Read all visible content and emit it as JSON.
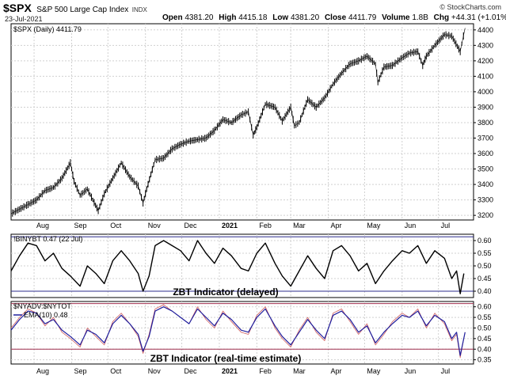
{
  "header": {
    "symbol": "$SPX",
    "name": "S&P 500 Large Cap Index",
    "exchange": "INDX",
    "date": "23-Jul-2021",
    "quote_open_label": "Open",
    "open": "4381.20",
    "quote_high_label": "High",
    "high": "4415.18",
    "quote_low_label": "Low",
    "low": "4381.20",
    "quote_close_label": "Close",
    "close": "4411.79",
    "quote_volume_label": "Volume",
    "volume": "1.8B",
    "quote_chg_label": "Chg",
    "chg": "+44.31 (+1.01%)",
    "watermark": "© StockCharts.com"
  },
  "colors": {
    "price_bars": "#000000",
    "panel2_line": "#000000",
    "panel3_raw": "#d06060",
    "panel3_ema": "#1f1f9e",
    "threshold_line": "#2c2c8c",
    "threshold_upper_panel3": "#a03050",
    "grid": "#d0d0d0"
  },
  "chart_data": [
    {
      "type": "line",
      "title": "",
      "legend": "$SPX (Daily) 4411.79",
      "x_tick_labels": [
        "Aug",
        "Sep",
        "Oct",
        "Nov",
        "Dec",
        "2021",
        "Feb",
        "Mar",
        "Apr",
        "May",
        "Jun",
        "Jul"
      ],
      "x_tick_dates": [
        "2020-08-01",
        "2020-09-01",
        "2020-10-01",
        "2020-11-01",
        "2020-12-01",
        "2021-01-01",
        "2021-02-01",
        "2021-03-01",
        "2021-04-01",
        "2021-05-01",
        "2021-06-01",
        "2021-07-01"
      ],
      "xlim": [
        "2020-07-13",
        "2021-07-30"
      ],
      "ylim": [
        3170,
        4440
      ],
      "y_ticks": [
        3200,
        3300,
        3400,
        3500,
        3600,
        3700,
        3800,
        3900,
        4000,
        4100,
        4200,
        4300,
        4400
      ],
      "x": [
        "2020-07-13",
        "2020-07-20",
        "2020-07-27",
        "2020-08-03",
        "2020-08-10",
        "2020-08-17",
        "2020-08-24",
        "2020-08-31",
        "2020-09-03",
        "2020-09-08",
        "2020-09-14",
        "2020-09-23",
        "2020-09-28",
        "2020-10-05",
        "2020-10-12",
        "2020-10-19",
        "2020-10-26",
        "2020-10-30",
        "2020-11-02",
        "2020-11-09",
        "2020-11-16",
        "2020-11-23",
        "2020-11-30",
        "2020-12-07",
        "2020-12-14",
        "2020-12-21",
        "2020-12-28",
        "2021-01-04",
        "2021-01-11",
        "2021-01-19",
        "2021-01-25",
        "2021-01-29",
        "2021-02-01",
        "2021-02-08",
        "2021-02-16",
        "2021-02-22",
        "2021-03-01",
        "2021-03-04",
        "2021-03-08",
        "2021-03-15",
        "2021-03-22",
        "2021-03-29",
        "2021-04-05",
        "2021-04-12",
        "2021-04-19",
        "2021-04-26",
        "2021-05-03",
        "2021-05-10",
        "2021-05-12",
        "2021-05-17",
        "2021-05-24",
        "2021-06-01",
        "2021-06-07",
        "2021-06-14",
        "2021-06-18",
        "2021-06-21",
        "2021-06-28",
        "2021-07-06",
        "2021-07-12",
        "2021-07-19",
        "2021-07-23"
      ],
      "series": [
        {
          "values": [
            3210,
            3240,
            3270,
            3300,
            3360,
            3380,
            3440,
            3540,
            3420,
            3330,
            3370,
            3230,
            3340,
            3440,
            3540,
            3450,
            3390,
            3280,
            3370,
            3560,
            3570,
            3630,
            3660,
            3680,
            3690,
            3700,
            3750,
            3820,
            3800,
            3850,
            3870,
            3720,
            3770,
            3920,
            3900,
            3810,
            3900,
            3780,
            3800,
            3950,
            3900,
            3960,
            4050,
            4120,
            4180,
            4200,
            4230,
            4180,
            4060,
            4160,
            4170,
            4220,
            4250,
            4260,
            4170,
            4230,
            4300,
            4370,
            4360,
            4260,
            4412
          ]
        }
      ]
    },
    {
      "type": "line",
      "title": "",
      "legend": "!BINYBT 0.47 (22 Jul)",
      "annotation": "ZBT Indicator (delayed)",
      "ylim": [
        0.375,
        0.625
      ],
      "y_ticks": [
        0.4,
        0.45,
        0.5,
        0.55,
        0.6
      ],
      "y_tick_labels": [
        "0.40",
        "0.45",
        "0.50",
        "0.55",
        "0.60"
      ],
      "threshold_lines": [
        0.615,
        0.4
      ],
      "x": [
        "2020-07-13",
        "2020-07-20",
        "2020-07-27",
        "2020-08-03",
        "2020-08-10",
        "2020-08-17",
        "2020-08-24",
        "2020-08-31",
        "2020-09-08",
        "2020-09-14",
        "2020-09-21",
        "2020-09-28",
        "2020-10-05",
        "2020-10-12",
        "2020-10-19",
        "2020-10-26",
        "2020-10-30",
        "2020-11-04",
        "2020-11-09",
        "2020-11-16",
        "2020-11-23",
        "2020-11-30",
        "2020-12-07",
        "2020-12-14",
        "2020-12-21",
        "2020-12-28",
        "2021-01-04",
        "2021-01-11",
        "2021-01-19",
        "2021-01-25",
        "2021-02-01",
        "2021-02-08",
        "2021-02-16",
        "2021-02-22",
        "2021-03-01",
        "2021-03-08",
        "2021-03-15",
        "2021-03-22",
        "2021-03-29",
        "2021-04-05",
        "2021-04-12",
        "2021-04-19",
        "2021-04-26",
        "2021-05-03",
        "2021-05-10",
        "2021-05-17",
        "2021-05-24",
        "2021-06-01",
        "2021-06-07",
        "2021-06-14",
        "2021-06-21",
        "2021-06-28",
        "2021-07-06",
        "2021-07-12",
        "2021-07-16",
        "2021-07-19",
        "2021-07-22"
      ],
      "series": [
        {
          "name": "!BINYBT",
          "values": [
            0.48,
            0.54,
            0.59,
            0.58,
            0.52,
            0.55,
            0.49,
            0.46,
            0.42,
            0.5,
            0.47,
            0.43,
            0.52,
            0.56,
            0.52,
            0.47,
            0.4,
            0.46,
            0.58,
            0.6,
            0.58,
            0.56,
            0.52,
            0.6,
            0.55,
            0.51,
            0.57,
            0.54,
            0.49,
            0.48,
            0.55,
            0.59,
            0.51,
            0.46,
            0.42,
            0.48,
            0.54,
            0.49,
            0.45,
            0.56,
            0.58,
            0.54,
            0.48,
            0.51,
            0.43,
            0.48,
            0.52,
            0.56,
            0.55,
            0.58,
            0.51,
            0.56,
            0.53,
            0.45,
            0.48,
            0.39,
            0.47
          ]
        }
      ]
    },
    {
      "type": "line",
      "title": "",
      "legend": [
        "$NYADV:$NYTOT",
        "EMA(10) 0.48"
      ],
      "annotation": "ZBT Indicator (real-time estimate)",
      "ylim": [
        0.33,
        0.625
      ],
      "y_ticks": [
        0.35,
        0.4,
        0.45,
        0.5,
        0.55,
        0.6
      ],
      "y_tick_labels": [
        "0.35",
        "0.40",
        "0.45",
        "0.50",
        "0.55",
        "0.60"
      ],
      "threshold_lines": [
        0.615,
        0.4
      ],
      "x": [
        "2020-07-13",
        "2020-07-20",
        "2020-07-27",
        "2020-08-03",
        "2020-08-10",
        "2020-08-17",
        "2020-08-24",
        "2020-08-31",
        "2020-09-08",
        "2020-09-14",
        "2020-09-21",
        "2020-09-28",
        "2020-10-05",
        "2020-10-12",
        "2020-10-19",
        "2020-10-26",
        "2020-10-30",
        "2020-11-04",
        "2020-11-09",
        "2020-11-16",
        "2020-11-23",
        "2020-11-30",
        "2020-12-07",
        "2020-12-14",
        "2020-12-21",
        "2020-12-28",
        "2021-01-04",
        "2021-01-11",
        "2021-01-19",
        "2021-01-25",
        "2021-02-01",
        "2021-02-08",
        "2021-02-16",
        "2021-02-22",
        "2021-03-01",
        "2021-03-08",
        "2021-03-15",
        "2021-03-22",
        "2021-03-29",
        "2021-04-05",
        "2021-04-12",
        "2021-04-19",
        "2021-04-26",
        "2021-05-03",
        "2021-05-10",
        "2021-05-17",
        "2021-05-24",
        "2021-06-01",
        "2021-06-07",
        "2021-06-14",
        "2021-06-21",
        "2021-06-28",
        "2021-07-06",
        "2021-07-12",
        "2021-07-16",
        "2021-07-19",
        "2021-07-23"
      ],
      "series": [
        {
          "name": "$NYADV:$NYTOT",
          "values": [
            0.5,
            0.55,
            0.59,
            0.57,
            0.51,
            0.55,
            0.48,
            0.45,
            0.41,
            0.5,
            0.46,
            0.42,
            0.53,
            0.57,
            0.52,
            0.46,
            0.38,
            0.47,
            0.59,
            0.61,
            0.58,
            0.55,
            0.52,
            0.6,
            0.54,
            0.5,
            0.58,
            0.53,
            0.48,
            0.47,
            0.56,
            0.6,
            0.5,
            0.45,
            0.41,
            0.49,
            0.55,
            0.48,
            0.44,
            0.57,
            0.59,
            0.53,
            0.47,
            0.52,
            0.42,
            0.47,
            0.53,
            0.57,
            0.55,
            0.59,
            0.5,
            0.57,
            0.52,
            0.44,
            0.47,
            0.36,
            0.48
          ]
        },
        {
          "name": "EMA(10)",
          "values": [
            0.49,
            0.54,
            0.58,
            0.57,
            0.52,
            0.54,
            0.49,
            0.46,
            0.42,
            0.49,
            0.47,
            0.43,
            0.52,
            0.56,
            0.52,
            0.47,
            0.39,
            0.46,
            0.58,
            0.6,
            0.58,
            0.55,
            0.52,
            0.59,
            0.55,
            0.51,
            0.57,
            0.54,
            0.49,
            0.48,
            0.55,
            0.59,
            0.51,
            0.46,
            0.42,
            0.48,
            0.54,
            0.49,
            0.45,
            0.56,
            0.58,
            0.54,
            0.48,
            0.51,
            0.43,
            0.48,
            0.52,
            0.56,
            0.55,
            0.58,
            0.51,
            0.56,
            0.53,
            0.45,
            0.48,
            0.37,
            0.48
          ]
        }
      ]
    }
  ]
}
